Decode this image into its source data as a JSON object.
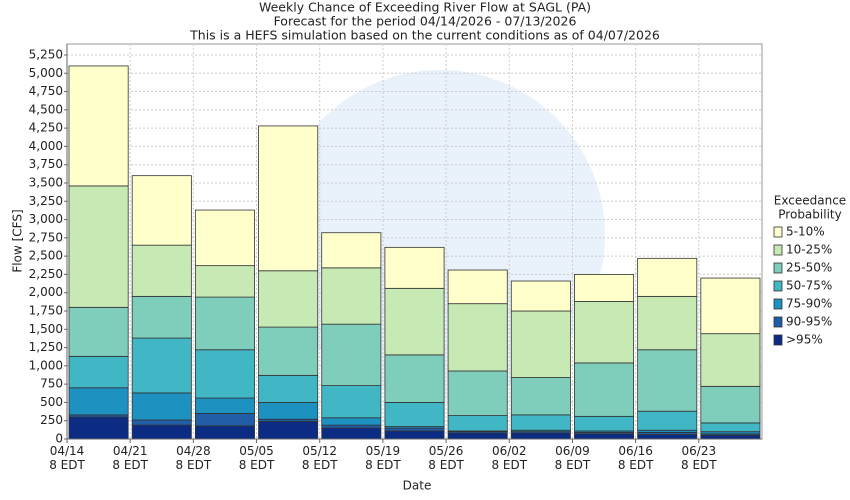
{
  "chart_data": {
    "type": "stacked_bar",
    "title": "Weekly Chance of Exceeding River Flow at SAGL (PA)",
    "subtitles": [
      "Forecast for the period 04/14/2026 - 07/13/2026",
      "This is a HEFS simulation based on the current conditions as of 04/07/2026"
    ],
    "x_label": "Date",
    "y_label": "Flow [CFS]",
    "legend_title": [
      "Exceedance",
      "Probability"
    ],
    "legend": "right",
    "grid": true,
    "categories": [
      "04/14 8 EDT",
      "04/21 8 EDT",
      "04/28 8 EDT",
      "05/05 8 EDT",
      "05/12 8 EDT",
      "05/19 8 EDT",
      "05/26 8 EDT",
      "06/02 8 EDT",
      "06/09 8 EDT",
      "06/16 8 EDT",
      "06/23 8 EDT"
    ],
    "series": [
      {
        "name": ">95%",
        "color": "#0c2c84",
        "values": [
          300,
          190,
          180,
          240,
          150,
          110,
          80,
          80,
          70,
          60,
          50
        ]
      },
      {
        "name": "90-95%",
        "color": "#225ea8",
        "values": [
          30,
          70,
          170,
          30,
          40,
          40,
          20,
          20,
          20,
          30,
          20
        ]
      },
      {
        "name": "75-90%",
        "color": "#1d91c0",
        "values": [
          370,
          370,
          210,
          230,
          100,
          20,
          10,
          20,
          20,
          30,
          30
        ]
      },
      {
        "name": "50-75%",
        "color": "#41b6c4",
        "values": [
          430,
          750,
          660,
          370,
          440,
          330,
          210,
          210,
          200,
          260,
          120
        ]
      },
      {
        "name": "25-50%",
        "color": "#7fcdbb",
        "values": [
          670,
          570,
          720,
          660,
          840,
          650,
          610,
          510,
          730,
          840,
          500
        ]
      },
      {
        "name": "10-25%",
        "color": "#c7e9b4",
        "values": [
          1660,
          700,
          430,
          770,
          770,
          910,
          920,
          910,
          840,
          730,
          720
        ]
      },
      {
        "name": "5-10%",
        "color": "#ffffcc",
        "values": [
          1640,
          950,
          760,
          1980,
          480,
          560,
          460,
          410,
          370,
          520,
          760
        ]
      }
    ],
    "ylim": [
      0,
      5400
    ],
    "yticks": [
      0,
      250,
      500,
      750,
      {
        "value": 1000,
        "label": "1,000"
      },
      {
        "value": 1250,
        "label": "1,250"
      },
      {
        "value": 1500,
        "label": "1,500"
      },
      {
        "value": 1750,
        "label": "1,750"
      },
      {
        "value": 2000,
        "label": "2,000"
      },
      {
        "value": 2250,
        "label": "2,250"
      },
      {
        "value": 2500,
        "label": "2,500"
      },
      {
        "value": 2750,
        "label": "2,750"
      },
      {
        "value": 3000,
        "label": "3,000"
      },
      {
        "value": 3250,
        "label": "3,250"
      },
      {
        "value": 3500,
        "label": "3,500"
      },
      {
        "value": 3750,
        "label": "3,750"
      },
      {
        "value": 4000,
        "label": "4,000"
      },
      {
        "value": 4250,
        "label": "4,250"
      },
      {
        "value": 4500,
        "label": "4,500"
      },
      {
        "value": 4750,
        "label": "4,750"
      },
      {
        "value": 5000,
        "label": "5,000"
      },
      {
        "value": 5250,
        "label": "5,250"
      }
    ]
  }
}
